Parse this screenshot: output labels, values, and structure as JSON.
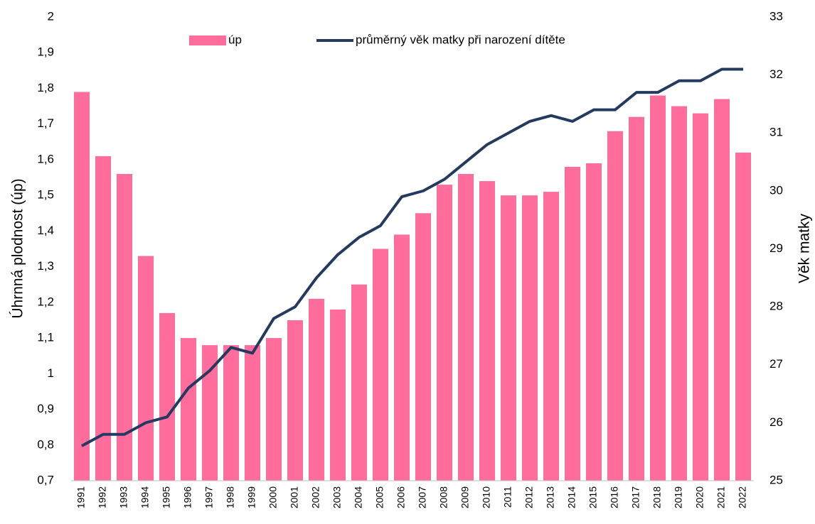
{
  "chart_data": {
    "type": "bar_line",
    "ylabel": "Úhrnná plodnost (úp)",
    "y2label": "Věk matky",
    "categories": [
      "1991",
      "1992",
      "1993",
      "1994",
      "1995",
      "1996",
      "1997",
      "1998",
      "1999",
      "2000",
      "2001",
      "2002",
      "2003",
      "2004",
      "2005",
      "2006",
      "2007",
      "2008",
      "2009",
      "2010",
      "2011",
      "2012",
      "2013",
      "2014",
      "2015",
      "2016",
      "2017",
      "2018",
      "2019",
      "2020",
      "2021",
      "2022"
    ],
    "series": [
      {
        "name": "úp",
        "type": "bar",
        "color": "#ff6d9c",
        "values": [
          1.79,
          1.61,
          1.56,
          1.33,
          1.17,
          1.1,
          1.08,
          1.08,
          1.08,
          1.1,
          1.15,
          1.21,
          1.18,
          1.25,
          1.35,
          1.39,
          1.45,
          1.53,
          1.56,
          1.54,
          1.5,
          1.5,
          1.51,
          1.58,
          1.59,
          1.68,
          1.72,
          1.78,
          1.75,
          1.73,
          1.77,
          1.62
        ]
      },
      {
        "name": "průměrný věk matky při narození dítěte",
        "type": "line",
        "axis": "y2",
        "color": "#243a5e",
        "values": [
          25.6,
          25.8,
          25.8,
          26.0,
          26.1,
          26.6,
          26.9,
          27.3,
          27.2,
          27.8,
          28.0,
          28.5,
          28.9,
          29.2,
          29.4,
          29.9,
          30.0,
          30.2,
          30.5,
          30.8,
          31.0,
          31.2,
          31.3,
          31.2,
          31.4,
          31.4,
          31.7,
          31.7,
          31.9,
          31.9,
          32.1,
          32.1
        ]
      }
    ],
    "ylim": [
      0.7,
      2
    ],
    "yticks": [
      {
        "value": 0.7,
        "label": "0,7"
      },
      {
        "value": 0.8,
        "label": "0,8"
      },
      {
        "value": 0.9,
        "label": "0,9"
      },
      1,
      {
        "value": 1.1,
        "label": "1,1"
      },
      {
        "value": 1.2,
        "label": "1,2"
      },
      {
        "value": 1.3,
        "label": "1,3"
      },
      {
        "value": 1.4,
        "label": "1,4"
      },
      {
        "value": 1.5,
        "label": "1,5"
      },
      {
        "value": 1.6,
        "label": "1,6"
      },
      {
        "value": 1.7,
        "label": "1,7"
      },
      {
        "value": 1.8,
        "label": "1,8"
      },
      {
        "value": 1.9,
        "label": "1,9"
      },
      2
    ],
    "y2lim": [
      25,
      33
    ],
    "y2ticks": [
      25,
      26,
      27,
      28,
      29,
      30,
      31,
      32,
      33
    ],
    "grid": false,
    "legend": "top"
  }
}
